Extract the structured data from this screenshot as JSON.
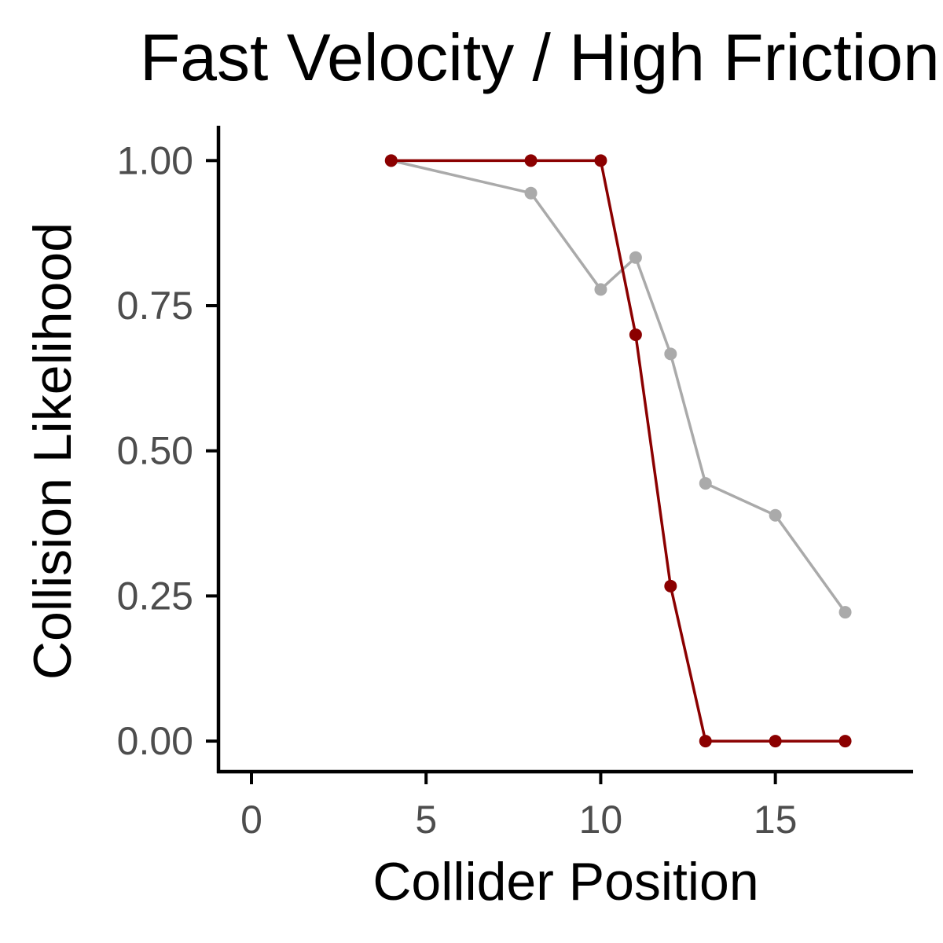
{
  "chart_data": {
    "type": "line",
    "title": "Fast Velocity / High Friction",
    "xlabel": "Collider Position",
    "ylabel": "Collision Likelihood",
    "xlim": [
      -0.9,
      18.9
    ],
    "ylim": [
      -0.05,
      1.06
    ],
    "xticks": [
      0,
      5,
      10,
      15
    ],
    "xtick_labels": [
      "0",
      "5",
      "10",
      "15"
    ],
    "yticks": [
      0,
      0.25,
      0.5,
      0.75,
      1.0
    ],
    "ytick_labels": [
      "0.00",
      "0.25",
      "0.50",
      "0.75",
      "1.00"
    ],
    "grid": false,
    "legend": "none",
    "series": [
      {
        "color": "#aaaaaa",
        "x": [
          4,
          8,
          10,
          11,
          12,
          13,
          15,
          17
        ],
        "y": [
          1.0,
          0.944,
          0.778,
          0.833,
          0.667,
          0.444,
          0.389,
          0.222
        ]
      },
      {
        "color": "#8b0000",
        "x": [
          4,
          8,
          10,
          11,
          12,
          13,
          15,
          17
        ],
        "y": [
          1.0,
          1.0,
          1.0,
          0.7,
          0.267,
          0.0,
          0.0,
          0.0
        ]
      }
    ]
  }
}
